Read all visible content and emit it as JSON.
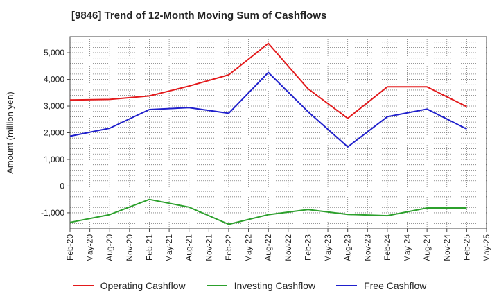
{
  "chart_data": {
    "type": "line",
    "title": "[9846]  Trend of 12-Month Moving Sum of Cashflows",
    "xlabel": "",
    "ylabel": "Amount (million yen)",
    "categories": [
      "Feb-20",
      "May-20",
      "Aug-20",
      "Nov-20",
      "Feb-21",
      "May-21",
      "Aug-21",
      "Nov-21",
      "Feb-22",
      "May-22",
      "Aug-22",
      "Nov-22",
      "Feb-23",
      "May-23",
      "Aug-23",
      "Nov-23",
      "Feb-24",
      "May-24",
      "Aug-24",
      "Nov-24",
      "Feb-25",
      "May-25"
    ],
    "ylim": [
      -1600,
      5600
    ],
    "yticks": [
      -1000,
      0,
      1000,
      2000,
      3000,
      4000,
      5000
    ],
    "ytick_labels": [
      "-1,000",
      "0",
      "1,000",
      "2,000",
      "3,000",
      "4,000",
      "5,000"
    ],
    "grid": true,
    "legend_position": "bottom",
    "series": [
      {
        "name": "Operating Cashflow",
        "color": "#e31a1c",
        "x": [
          "Feb-20",
          "Aug-20",
          "Feb-21",
          "Aug-21",
          "Feb-22",
          "Aug-22",
          "Feb-23",
          "Aug-23",
          "Feb-24",
          "Aug-24",
          "Feb-25"
        ],
        "values": [
          3230,
          3250,
          3380,
          3750,
          4170,
          5350,
          3650,
          2540,
          3720,
          3720,
          2980
        ]
      },
      {
        "name": "Investing Cashflow",
        "color": "#2ca02c",
        "x": [
          "Feb-20",
          "Aug-20",
          "Feb-21",
          "Aug-21",
          "Feb-22",
          "Aug-22",
          "Feb-23",
          "Aug-23",
          "Feb-24",
          "Aug-24",
          "Feb-25"
        ],
        "values": [
          -1360,
          -1070,
          -500,
          -790,
          -1430,
          -1070,
          -880,
          -1060,
          -1110,
          -820,
          -820
        ]
      },
      {
        "name": "Free Cashflow",
        "color": "#1f1fcc",
        "x": [
          "Feb-20",
          "Aug-20",
          "Feb-21",
          "Aug-21",
          "Feb-22",
          "Aug-22",
          "Feb-23",
          "Aug-23",
          "Feb-24",
          "Aug-24",
          "Feb-25"
        ],
        "values": [
          1870,
          2170,
          2870,
          2940,
          2730,
          4260,
          2790,
          1470,
          2600,
          2890,
          2140
        ]
      }
    ]
  }
}
